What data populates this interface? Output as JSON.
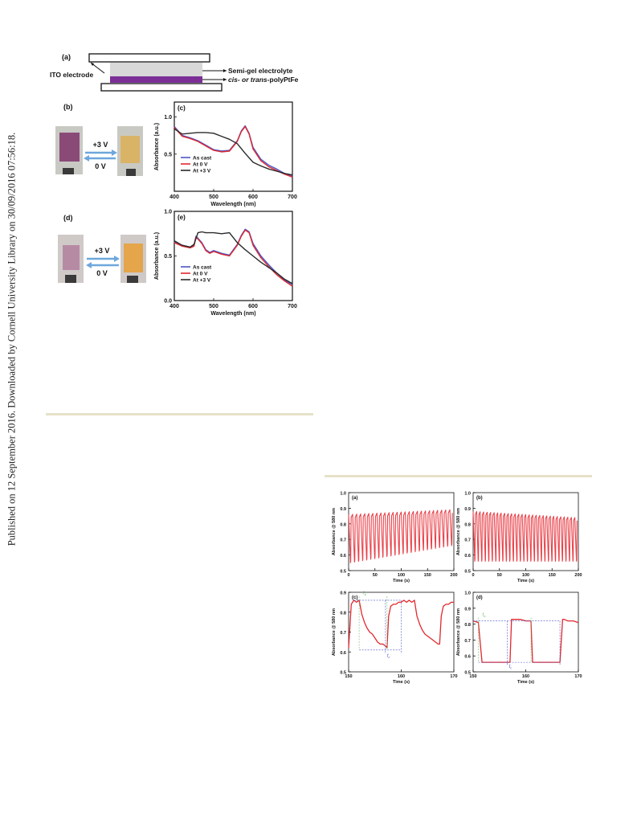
{
  "sidebar": {
    "text": "Published on 12 September 2016. Downloaded by Cornell University Library on 30/09/2016 07:56:18."
  },
  "figure1": {
    "schematic": {
      "panel": "(a)",
      "ito_label": "ITO electrode",
      "electrolyte_label": "Semi-gel electrolyte",
      "polymer_label_prefix": "cis- or ",
      "polymer_label_italic": "trans",
      "polymer_label_suffix": "-polyPtFe"
    },
    "photo_b": {
      "panel": "(b)",
      "forward": "+3 V",
      "backward": "0 V",
      "film_colors": [
        "#8a4a78",
        "#d9b467"
      ]
    },
    "photo_d": {
      "panel": "(d)",
      "forward": "+3 V",
      "backward": "0 V",
      "film_colors": [
        "#b78aa4",
        "#e4a54b"
      ]
    }
  },
  "colors": {
    "blue": "#4a55c8",
    "red": "#e0282e",
    "black": "#2a2a2a",
    "arrow": "#6ea7dc",
    "pink": "#e8424a",
    "rule": "#e6e2c8"
  },
  "chart_data": [
    {
      "id": "c",
      "type": "line",
      "panel": "(c)",
      "xlabel": "Wavelength (nm)",
      "ylabel": "Absorbance (a.u.)",
      "xlim": [
        400,
        700
      ],
      "ylim": [
        0.0,
        1.2
      ],
      "xticks": [
        400,
        500,
        600,
        700
      ],
      "yticks": [
        0.5,
        1.0
      ],
      "legend_position": "lower-left",
      "series": [
        {
          "name": "As cast",
          "color": "#4a55c8",
          "x": [
            400,
            420,
            440,
            460,
            480,
            500,
            520,
            540,
            560,
            570,
            580,
            590,
            600,
            620,
            640,
            660,
            680,
            700
          ],
          "y": [
            0.87,
            0.75,
            0.72,
            0.68,
            0.62,
            0.56,
            0.54,
            0.55,
            0.68,
            0.81,
            0.88,
            0.78,
            0.59,
            0.43,
            0.35,
            0.3,
            0.24,
            0.2
          ]
        },
        {
          "name": "At 0 V",
          "color": "#e0282e",
          "x": [
            400,
            420,
            440,
            460,
            480,
            500,
            520,
            540,
            560,
            570,
            580,
            590,
            600,
            620,
            640,
            660,
            680,
            700
          ],
          "y": [
            0.86,
            0.74,
            0.71,
            0.67,
            0.61,
            0.55,
            0.53,
            0.54,
            0.67,
            0.8,
            0.87,
            0.77,
            0.57,
            0.41,
            0.33,
            0.28,
            0.23,
            0.19
          ]
        },
        {
          "name": "At +3 V",
          "color": "#2a2a2a",
          "x": [
            400,
            420,
            440,
            460,
            480,
            500,
            520,
            540,
            560,
            580,
            600,
            620,
            640,
            660,
            680,
            700
          ],
          "y": [
            0.84,
            0.77,
            0.78,
            0.79,
            0.79,
            0.78,
            0.74,
            0.7,
            0.64,
            0.51,
            0.39,
            0.34,
            0.3,
            0.27,
            0.24,
            0.22
          ]
        }
      ]
    },
    {
      "id": "e",
      "type": "line",
      "panel": "(e)",
      "xlabel": "Wavelength (nm)",
      "ylabel": "Absorbance (a.u.)",
      "xlim": [
        400,
        700
      ],
      "ylim": [
        0.0,
        1.0
      ],
      "xticks": [
        400,
        500,
        600,
        700
      ],
      "yticks": [
        0.0,
        0.5,
        1.0
      ],
      "legend_position": "lower-left",
      "series": [
        {
          "name": "As cast",
          "color": "#4a55c8",
          "x": [
            400,
            420,
            440,
            450,
            455,
            460,
            470,
            480,
            490,
            500,
            520,
            540,
            560,
            570,
            580,
            590,
            600,
            620,
            640,
            660,
            680,
            700
          ],
          "y": [
            0.66,
            0.62,
            0.6,
            0.62,
            0.72,
            0.7,
            0.65,
            0.57,
            0.54,
            0.56,
            0.53,
            0.51,
            0.63,
            0.73,
            0.8,
            0.77,
            0.64,
            0.5,
            0.4,
            0.31,
            0.23,
            0.18
          ]
        },
        {
          "name": "At 0 V",
          "color": "#e0282e",
          "x": [
            400,
            420,
            440,
            450,
            455,
            460,
            470,
            480,
            490,
            500,
            520,
            540,
            560,
            570,
            580,
            590,
            600,
            620,
            640,
            660,
            680,
            700
          ],
          "y": [
            0.65,
            0.61,
            0.59,
            0.61,
            0.71,
            0.69,
            0.64,
            0.56,
            0.53,
            0.55,
            0.52,
            0.5,
            0.62,
            0.72,
            0.79,
            0.76,
            0.62,
            0.48,
            0.38,
            0.29,
            0.22,
            0.16
          ]
        },
        {
          "name": "At +3 V",
          "color": "#2a2a2a",
          "x": [
            400,
            420,
            440,
            450,
            460,
            470,
            480,
            500,
            520,
            540,
            560,
            580,
            600,
            620,
            640,
            660,
            680,
            700
          ],
          "y": [
            0.67,
            0.62,
            0.6,
            0.63,
            0.76,
            0.77,
            0.76,
            0.76,
            0.75,
            0.76,
            0.65,
            0.57,
            0.5,
            0.43,
            0.37,
            0.31,
            0.24,
            0.19
          ]
        }
      ]
    },
    {
      "id": "a2",
      "type": "line",
      "panel": "(a)",
      "xlabel": "Time (s)",
      "ylabel": "Absorbance @ 580 nm",
      "xlim": [
        0,
        200
      ],
      "ylim": [
        0.5,
        1.0
      ],
      "xticks": [
        0,
        50,
        100,
        150,
        200
      ],
      "yticks": [
        0.5,
        0.6,
        0.7,
        0.8,
        0.9,
        1.0
      ],
      "oscillation": {
        "count": 26,
        "high_start": 0.86,
        "high_end": 0.89,
        "low_start": 0.55,
        "low_end": 0.66
      }
    },
    {
      "id": "b2",
      "type": "line",
      "panel": "(b)",
      "xlabel": "Time (s)",
      "ylabel": "Absorbance @ 580 nm",
      "xlim": [
        0,
        200
      ],
      "ylim": [
        0.5,
        1.0
      ],
      "xticks": [
        0,
        50,
        100,
        150,
        200
      ],
      "yticks": [
        0.5,
        0.6,
        0.7,
        0.8,
        0.9,
        1.0
      ],
      "oscillation": {
        "count": 30,
        "high_start": 0.88,
        "high_end": 0.84,
        "low_start": 0.56,
        "low_end": 0.56
      }
    },
    {
      "id": "c2",
      "type": "line",
      "panel": "(c)",
      "xlabel": "Time (s)",
      "ylabel": "Absorbance @ 580 nm",
      "xlim": [
        150,
        170
      ],
      "ylim": [
        0.5,
        0.9
      ],
      "xticks": [
        150,
        160,
        170
      ],
      "yticks": [
        0.5,
        0.6,
        0.7,
        0.8,
        0.9
      ],
      "annotations": {
        "tb": "t",
        "tb_sub": "b",
        "tc": "t",
        "tc_sub": "c"
      },
      "series": [
        {
          "name": "",
          "color": "#e0282e",
          "x": [
            150,
            150.5,
            151,
            151.5,
            152,
            152.5,
            153,
            153.5,
            154,
            154.5,
            155,
            155.5,
            156,
            156.5,
            157,
            157.3,
            157.6,
            158,
            158.5,
            159,
            159.5,
            160,
            160.5,
            161,
            161.5,
            162,
            162.5,
            163,
            163.5,
            164,
            164.5,
            165,
            165.5,
            166,
            166.5,
            167,
            167.3,
            167.6,
            168,
            168.5,
            169,
            169.5,
            170
          ],
          "y": [
            0.62,
            0.84,
            0.86,
            0.85,
            0.86,
            0.79,
            0.75,
            0.72,
            0.7,
            0.69,
            0.67,
            0.65,
            0.64,
            0.64,
            0.63,
            0.62,
            0.78,
            0.83,
            0.84,
            0.84,
            0.85,
            0.85,
            0.86,
            0.85,
            0.86,
            0.85,
            0.86,
            0.78,
            0.74,
            0.71,
            0.69,
            0.68,
            0.67,
            0.66,
            0.65,
            0.64,
            0.64,
            0.78,
            0.83,
            0.84,
            0.84,
            0.85,
            0.85
          ]
        }
      ]
    },
    {
      "id": "d2",
      "type": "line",
      "panel": "(d)",
      "xlabel": "Time (s)",
      "ylabel": "Absorbance @ 580 nm",
      "xlim": [
        150,
        170
      ],
      "ylim": [
        0.5,
        1.0
      ],
      "xticks": [
        150,
        160,
        170
      ],
      "yticks": [
        0.5,
        0.6,
        0.7,
        0.8,
        0.9,
        1.0
      ],
      "annotations": {
        "tb": "t",
        "tb_sub": "b",
        "tc": "t",
        "tc_sub": "c"
      },
      "series": [
        {
          "name": "",
          "color": "#e0282e",
          "x": [
            150,
            151,
            151.7,
            152,
            153,
            154,
            155,
            156,
            157,
            157.3,
            158,
            159,
            160,
            160.5,
            161,
            161.3,
            162,
            163,
            164,
            165,
            166,
            166.5,
            167,
            167.3,
            168,
            169,
            170
          ],
          "y": [
            0.82,
            0.81,
            0.56,
            0.56,
            0.56,
            0.56,
            0.56,
            0.56,
            0.56,
            0.83,
            0.83,
            0.83,
            0.82,
            0.82,
            0.82,
            0.56,
            0.56,
            0.56,
            0.56,
            0.56,
            0.56,
            0.56,
            0.83,
            0.83,
            0.82,
            0.82,
            0.81
          ]
        }
      ]
    }
  ]
}
